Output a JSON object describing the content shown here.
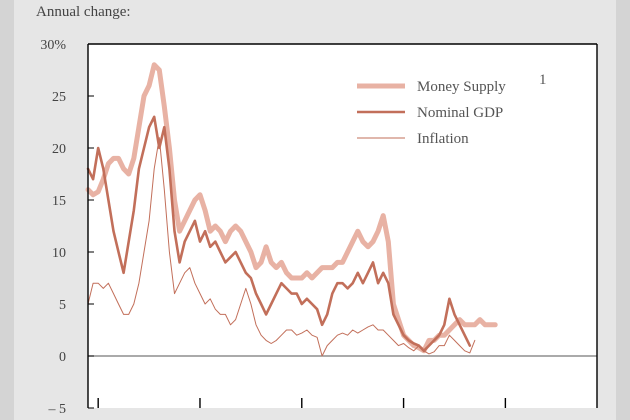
{
  "caption": "Annual change:",
  "chart_data": {
    "type": "line",
    "ylim": [
      -5,
      30
    ],
    "y_ticks": [
      {
        "value": 30,
        "label": "30%"
      },
      {
        "value": 25,
        "label": "25"
      },
      {
        "value": 20,
        "label": "20"
      },
      {
        "value": 15,
        "label": "15"
      },
      {
        "value": 10,
        "label": "10"
      },
      {
        "value": 5,
        "label": "5"
      },
      {
        "value": 0,
        "label": "0"
      },
      {
        "value": -5,
        "label": "– 5"
      }
    ],
    "xlim": [
      0,
      100
    ],
    "x_tick_positions": [
      2,
      22,
      42,
      62,
      82
    ],
    "legend_position": "top-right",
    "colors": {
      "money_supply": "#e8b2a4",
      "nominal_gdp": "#c26f5a",
      "inflation": "#c26f5a",
      "axis": "#000000",
      "zero_line": "#777777"
    },
    "series": [
      {
        "key": "money_supply",
        "name": "Money Supply",
        "footnote": "1",
        "points": [
          [
            0,
            16
          ],
          [
            1,
            15.5
          ],
          [
            2,
            15.8
          ],
          [
            3,
            17
          ],
          [
            4,
            18.5
          ],
          [
            5,
            19
          ],
          [
            6,
            19
          ],
          [
            7,
            18
          ],
          [
            8,
            17.5
          ],
          [
            9,
            19
          ],
          [
            10,
            22
          ],
          [
            11,
            25
          ],
          [
            12,
            26
          ],
          [
            13,
            28
          ],
          [
            14,
            27.5
          ],
          [
            15,
            24
          ],
          [
            16,
            20
          ],
          [
            17,
            15
          ],
          [
            18,
            12
          ],
          [
            19,
            13
          ],
          [
            20,
            14
          ],
          [
            21,
            15
          ],
          [
            22,
            15.5
          ],
          [
            23,
            14
          ],
          [
            24,
            12
          ],
          [
            25,
            12.5
          ],
          [
            26,
            12
          ],
          [
            27,
            11
          ],
          [
            28,
            12
          ],
          [
            29,
            12.5
          ],
          [
            30,
            12
          ],
          [
            31,
            11
          ],
          [
            32,
            10
          ],
          [
            33,
            8.5
          ],
          [
            34,
            9
          ],
          [
            35,
            10.5
          ],
          [
            36,
            9
          ],
          [
            37,
            8.5
          ],
          [
            38,
            9
          ],
          [
            39,
            8
          ],
          [
            40,
            7.5
          ],
          [
            41,
            7.5
          ],
          [
            42,
            7.5
          ],
          [
            43,
            8
          ],
          [
            44,
            7.5
          ],
          [
            45,
            8
          ],
          [
            46,
            8.5
          ],
          [
            47,
            8.5
          ],
          [
            48,
            8.5
          ],
          [
            49,
            9
          ],
          [
            50,
            9
          ],
          [
            51,
            10
          ],
          [
            52,
            11
          ],
          [
            53,
            12
          ],
          [
            54,
            11
          ],
          [
            55,
            10.5
          ],
          [
            56,
            11
          ],
          [
            57,
            12
          ],
          [
            58,
            13.5
          ],
          [
            59,
            11
          ],
          [
            60,
            5
          ],
          [
            61,
            3.5
          ],
          [
            62,
            2
          ],
          [
            63,
            1.5
          ],
          [
            64,
            1
          ],
          [
            65,
            0.8
          ],
          [
            66,
            0.5
          ],
          [
            67,
            1.5
          ],
          [
            68,
            1.5
          ],
          [
            69,
            2
          ],
          [
            70,
            2
          ],
          [
            71,
            2.5
          ],
          [
            72,
            3
          ],
          [
            73,
            3.5
          ],
          [
            74,
            3
          ],
          [
            75,
            3
          ],
          [
            76,
            3
          ],
          [
            77,
            3.5
          ],
          [
            78,
            3
          ],
          [
            79,
            3
          ],
          [
            80,
            3
          ]
        ]
      },
      {
        "key": "nominal_gdp",
        "name": "Nominal GDP",
        "points": [
          [
            0,
            18
          ],
          [
            1,
            17
          ],
          [
            2,
            20
          ],
          [
            3,
            18
          ],
          [
            4,
            15
          ],
          [
            5,
            12
          ],
          [
            6,
            10
          ],
          [
            7,
            8
          ],
          [
            8,
            11
          ],
          [
            9,
            14
          ],
          [
            10,
            18
          ],
          [
            11,
            20
          ],
          [
            12,
            22
          ],
          [
            13,
            23
          ],
          [
            14,
            20
          ],
          [
            15,
            22
          ],
          [
            16,
            18
          ],
          [
            17,
            12
          ],
          [
            18,
            9
          ],
          [
            19,
            11
          ],
          [
            20,
            12
          ],
          [
            21,
            13
          ],
          [
            22,
            11
          ],
          [
            23,
            12
          ],
          [
            24,
            10.5
          ],
          [
            25,
            11
          ],
          [
            26,
            10
          ],
          [
            27,
            9
          ],
          [
            28,
            9.5
          ],
          [
            29,
            10
          ],
          [
            30,
            9
          ],
          [
            31,
            8
          ],
          [
            32,
            7.5
          ],
          [
            33,
            6
          ],
          [
            34,
            5
          ],
          [
            35,
            4
          ],
          [
            36,
            5
          ],
          [
            37,
            6
          ],
          [
            38,
            7
          ],
          [
            39,
            6.5
          ],
          [
            40,
            6
          ],
          [
            41,
            6
          ],
          [
            42,
            5
          ],
          [
            43,
            5.5
          ],
          [
            44,
            5
          ],
          [
            45,
            4.5
          ],
          [
            46,
            3
          ],
          [
            47,
            4
          ],
          [
            48,
            6
          ],
          [
            49,
            7
          ],
          [
            50,
            7
          ],
          [
            51,
            6.5
          ],
          [
            52,
            7
          ],
          [
            53,
            8
          ],
          [
            54,
            7
          ],
          [
            55,
            8
          ],
          [
            56,
            9
          ],
          [
            57,
            7
          ],
          [
            58,
            8
          ],
          [
            59,
            7
          ],
          [
            60,
            4
          ],
          [
            61,
            3
          ],
          [
            62,
            2
          ],
          [
            63,
            1.5
          ],
          [
            64,
            1.2
          ],
          [
            65,
            1
          ],
          [
            66,
            0.5
          ],
          [
            67,
            1
          ],
          [
            68,
            1.5
          ],
          [
            69,
            2
          ],
          [
            70,
            3
          ],
          [
            71,
            5.5
          ],
          [
            72,
            4
          ],
          [
            73,
            3
          ],
          [
            74,
            2
          ],
          [
            75,
            1
          ]
        ]
      },
      {
        "key": "inflation",
        "name": "Inflation",
        "points": [
          [
            0,
            5
          ],
          [
            1,
            7
          ],
          [
            2,
            7
          ],
          [
            3,
            6.5
          ],
          [
            4,
            7
          ],
          [
            5,
            6
          ],
          [
            6,
            5
          ],
          [
            7,
            4
          ],
          [
            8,
            4
          ],
          [
            9,
            5
          ],
          [
            10,
            7
          ],
          [
            11,
            10
          ],
          [
            12,
            13
          ],
          [
            13,
            18
          ],
          [
            14,
            21
          ],
          [
            15,
            16
          ],
          [
            16,
            10
          ],
          [
            17,
            6
          ],
          [
            18,
            7
          ],
          [
            19,
            8
          ],
          [
            20,
            8.5
          ],
          [
            21,
            7
          ],
          [
            22,
            6
          ],
          [
            23,
            5
          ],
          [
            24,
            5.5
          ],
          [
            25,
            4.5
          ],
          [
            26,
            4
          ],
          [
            27,
            4
          ],
          [
            28,
            3
          ],
          [
            29,
            3.5
          ],
          [
            30,
            5
          ],
          [
            31,
            6.5
          ],
          [
            32,
            5
          ],
          [
            33,
            3
          ],
          [
            34,
            2
          ],
          [
            35,
            1.5
          ],
          [
            36,
            1.2
          ],
          [
            37,
            1.5
          ],
          [
            38,
            2
          ],
          [
            39,
            2.5
          ],
          [
            40,
            2.5
          ],
          [
            41,
            2
          ],
          [
            42,
            2.2
          ],
          [
            43,
            2.5
          ],
          [
            44,
            2
          ],
          [
            45,
            1.8
          ],
          [
            46,
            0
          ],
          [
            47,
            1
          ],
          [
            48,
            1.5
          ],
          [
            49,
            2
          ],
          [
            50,
            2.2
          ],
          [
            51,
            2
          ],
          [
            52,
            2.5
          ],
          [
            53,
            2.2
          ],
          [
            54,
            2.5
          ],
          [
            55,
            2.8
          ],
          [
            56,
            3
          ],
          [
            57,
            2.5
          ],
          [
            58,
            2.5
          ],
          [
            59,
            2
          ],
          [
            60,
            1.5
          ],
          [
            61,
            1
          ],
          [
            62,
            1.2
          ],
          [
            63,
            0.8
          ],
          [
            64,
            0.5
          ],
          [
            65,
            1
          ],
          [
            66,
            0.5
          ],
          [
            67,
            0.2
          ],
          [
            68,
            0.4
          ],
          [
            69,
            1
          ],
          [
            70,
            1
          ],
          [
            71,
            2
          ],
          [
            72,
            1.5
          ],
          [
            73,
            1
          ],
          [
            74,
            0.5
          ],
          [
            75,
            0.3
          ],
          [
            76,
            1.5
          ]
        ]
      }
    ]
  }
}
